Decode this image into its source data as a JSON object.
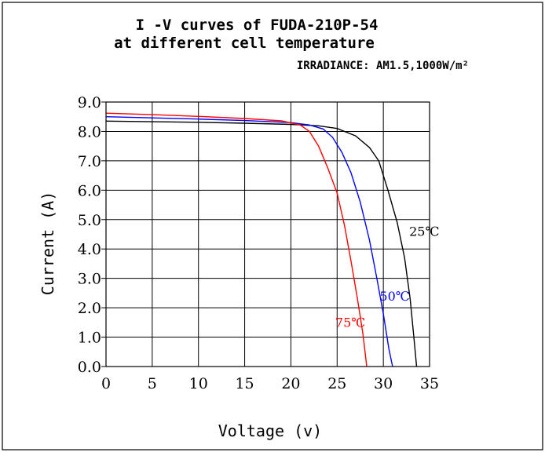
{
  "chart_data": {
    "type": "line",
    "title": "I -V curves of FUDA-210P-54",
    "subtitle": "at different cell temperature",
    "note": "IRRADIANCE: AM1.5,1000W/m²",
    "xlabel": "Voltage (v)",
    "ylabel": "Current (A)",
    "xlim": [
      0,
      35
    ],
    "ylim": [
      0,
      9
    ],
    "x_ticks": [
      "0",
      "5",
      "10",
      "15",
      "20",
      "25",
      "30",
      "35"
    ],
    "y_ticks": [
      "0.0",
      "1.0",
      "2.0",
      "3.0",
      "4.0",
      "5.0",
      "6.0",
      "7.0",
      "8.0",
      "9.0"
    ],
    "grid": true,
    "series": [
      {
        "name": "25℃",
        "color": "#000000",
        "points": [
          [
            0,
            8.35
          ],
          [
            5,
            8.33
          ],
          [
            10,
            8.31
          ],
          [
            15,
            8.28
          ],
          [
            20,
            8.24
          ],
          [
            23,
            8.19
          ],
          [
            25,
            8.1
          ],
          [
            27,
            7.85
          ],
          [
            28.5,
            7.45
          ],
          [
            29.5,
            7.0
          ],
          [
            30.5,
            6.0
          ],
          [
            31.5,
            4.9
          ],
          [
            32.3,
            3.7
          ],
          [
            32.9,
            2.3
          ],
          [
            33.3,
            1.0
          ],
          [
            33.6,
            0
          ]
        ]
      },
      {
        "name": "50℃",
        "color": "#0000ff",
        "points": [
          [
            0,
            8.5
          ],
          [
            5,
            8.46
          ],
          [
            10,
            8.42
          ],
          [
            15,
            8.37
          ],
          [
            20,
            8.3
          ],
          [
            22,
            8.22
          ],
          [
            23.5,
            8.08
          ],
          [
            24.5,
            7.8
          ],
          [
            25.5,
            7.3
          ],
          [
            26.5,
            6.6
          ],
          [
            27.5,
            5.6
          ],
          [
            28.5,
            4.3
          ],
          [
            29.3,
            3.0
          ],
          [
            30,
            1.8
          ],
          [
            30.6,
            0.6
          ],
          [
            31,
            0
          ]
        ]
      },
      {
        "name": "75℃",
        "color": "#ff0000",
        "points": [
          [
            0,
            8.62
          ],
          [
            5,
            8.57
          ],
          [
            10,
            8.51
          ],
          [
            15,
            8.44
          ],
          [
            19,
            8.36
          ],
          [
            21,
            8.22
          ],
          [
            22,
            8.0
          ],
          [
            23,
            7.5
          ],
          [
            24,
            6.75
          ],
          [
            25,
            5.9
          ],
          [
            25.8,
            4.8
          ],
          [
            26.5,
            3.6
          ],
          [
            27.2,
            2.3
          ],
          [
            27.8,
            1.1
          ],
          [
            28.2,
            0
          ]
        ]
      }
    ],
    "annotations": [
      {
        "text": "25℃",
        "x": 32.8,
        "y": 4.45,
        "color": "#000000"
      },
      {
        "text": "50℃",
        "x": 29.6,
        "y": 2.25,
        "color": "#0000ff"
      },
      {
        "text": "75℃",
        "x": 24.8,
        "y": 1.35,
        "color": "#ff0000"
      }
    ]
  }
}
